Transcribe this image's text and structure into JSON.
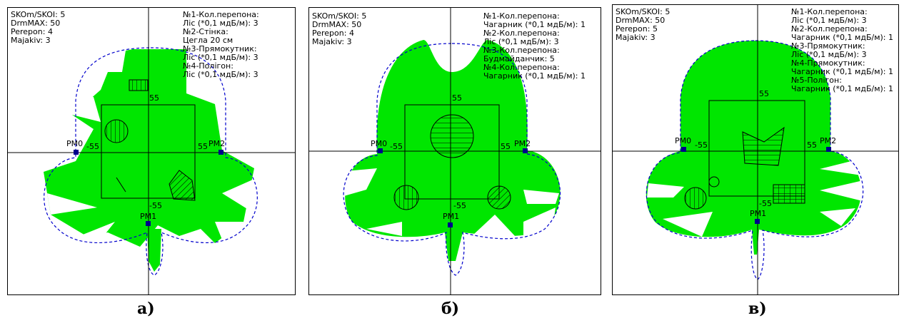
{
  "colors": {
    "zone": "#00e600",
    "boundary": "#0000cc",
    "marker": "#00008b"
  },
  "panels": [
    {
      "caption": "а)",
      "left": [
        "SKOm/SKOI: 5",
        "DrmMAX: 50",
        "Perepon: 4",
        "Majakiv: 3"
      ],
      "right": [
        "№1-Кол.перепона:",
        "Ліс (*0,1 мдБ/м): 3",
        "№2-Стінка:",
        "Цегла 20 см",
        "№3-Прямокутник:",
        "Ліс (*0,1 мдБ/м): 3",
        "№4-Полігон:",
        "Ліс (*0,1 мдБ/м): 3"
      ],
      "beacons": {
        "left": "PM0",
        "bottom": "PM1",
        "right": "PM2"
      },
      "ticks": {
        "top": "55",
        "left": "-55",
        "right": "55",
        "bottom": "-55"
      }
    },
    {
      "caption": "б)",
      "left": [
        "SKOm/SKOI: 5",
        "DrmMAX: 50",
        "Perepon: 4",
        "Majakiv: 3"
      ],
      "right": [
        "№1-Кол.перепона:",
        "Чагарник (*0,1 мдБ/м): 1",
        "№2-Кол.перепона:",
        "Ліс (*0,1 мдБ/м): 3",
        "№3-Кол.перепона:",
        "Будмайданчик: 5",
        "№4-Кол.перепона:",
        "Чагарник (*0,1 мдБ/м): 1"
      ],
      "beacons": {
        "left": "PM0",
        "bottom": "PM1",
        "right": "PM2"
      },
      "ticks": {
        "top": "55",
        "left": "-55",
        "right": "55",
        "bottom": "-55"
      }
    },
    {
      "caption": "в)",
      "left": [
        "SKOm/SKOI: 5",
        "DrmMAX: 50",
        "Perepon: 5",
        "Majakiv: 3"
      ],
      "right": [
        "№1-Кол.перепона:",
        "Ліс (*0,1 мдБ/м): 3",
        "№2-Кол.перепона:",
        "Чагарник (*0,1 мдБ/м): 1",
        "№3-Прямокутник:",
        "Ліс (*0,1 мдБ/м): 3",
        "№4-Прямокутник:",
        "Чагарник (*0,1 мдБ/м): 1",
        "№5-Полігон:",
        "Чагарник (*0,1 мдБ/м): 1"
      ],
      "beacons": {
        "left": "PM0",
        "bottom": "PM1",
        "right": "PM2"
      },
      "ticks": {
        "top": "55",
        "left": "-55",
        "right": "55",
        "bottom": "-55"
      }
    }
  ]
}
